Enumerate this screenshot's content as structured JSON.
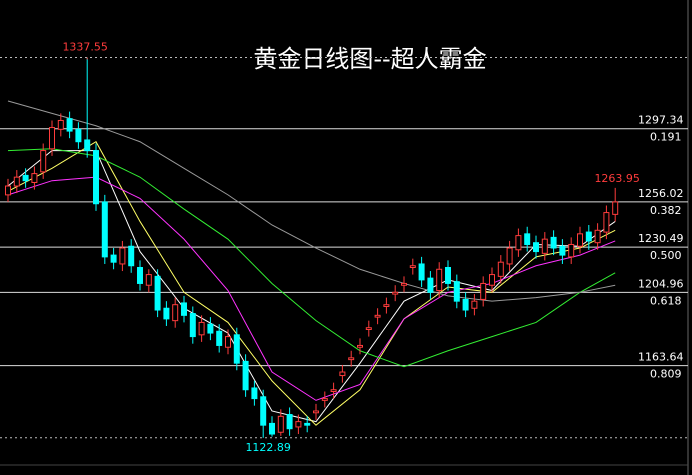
{
  "chart_data": {
    "type": "candlestick",
    "title": "黄金日线图--超人霸金",
    "up_color": "#ff3c3c",
    "down_color": "#00ffff",
    "ylim": [
      1103,
      1370
    ],
    "open": [
      1260,
      1265,
      1271,
      1267,
      1273,
      1286,
      1297,
      1303,
      1297,
      1291,
      1285,
      1256,
      1226,
      1221,
      1231,
      1219,
      1209,
      1214,
      1196,
      1189,
      1199,
      1193,
      1181,
      1187,
      1183,
      1174,
      1181,
      1166,
      1151,
      1146,
      1131,
      1126,
      1136,
      1129,
      1131,
      1137,
      1144,
      1149,
      1158,
      1167,
      1174,
      1184,
      1191,
      1197,
      1204,
      1209,
      1219,
      1221,
      1213,
      1206,
      1219,
      1211,
      1201,
      1196,
      1201,
      1209,
      1214,
      1221,
      1229,
      1238,
      1233,
      1227,
      1236,
      1231,
      1225,
      1231,
      1239,
      1233,
      1239,
      1249
    ],
    "high": [
      1269,
      1274,
      1275,
      1276,
      1289,
      1302,
      1306,
      1307,
      1301,
      1337.55,
      1289,
      1260,
      1230,
      1234,
      1235,
      1223,
      1218,
      1218,
      1200,
      1202,
      1203,
      1197,
      1192,
      1191,
      1187,
      1184,
      1185,
      1170,
      1155,
      1150,
      1135,
      1139,
      1140,
      1136,
      1135,
      1142,
      1149,
      1154,
      1164,
      1172,
      1179,
      1189,
      1196,
      1202,
      1209,
      1214,
      1224,
      1225,
      1217,
      1222,
      1223,
      1215,
      1205,
      1204,
      1214,
      1219,
      1226,
      1234,
      1241,
      1242,
      1237,
      1239,
      1240,
      1235,
      1236,
      1242,
      1243,
      1244,
      1254,
      1263.95
    ],
    "low": [
      1256,
      1261,
      1264,
      1263,
      1269,
      1282,
      1293,
      1292,
      1286,
      1281,
      1251,
      1221,
      1218,
      1217,
      1216,
      1206,
      1205,
      1191,
      1186,
      1185,
      1188,
      1176,
      1177,
      1178,
      1171,
      1170,
      1161,
      1146,
      1141,
      1122.89,
      1123.5,
      1124,
      1124,
      1125,
      1126,
      1133,
      1140,
      1145,
      1154,
      1163,
      1170,
      1180,
      1187,
      1193,
      1200,
      1205,
      1215,
      1208,
      1201,
      1202,
      1206,
      1196,
      1191,
      1192,
      1197,
      1205,
      1210,
      1217,
      1225,
      1228,
      1224,
      1223,
      1226,
      1221,
      1221,
      1227,
      1229,
      1229,
      1235,
      1245
    ],
    "close": [
      1265,
      1270,
      1268,
      1272,
      1285,
      1298,
      1302,
      1296,
      1290,
      1285,
      1255,
      1225,
      1222,
      1230,
      1220,
      1210,
      1215,
      1195,
      1190,
      1198,
      1192,
      1180,
      1188,
      1182,
      1175,
      1180,
      1165,
      1150,
      1145,
      1130,
      1125,
      1135,
      1128,
      1132,
      1130,
      1138,
      1145,
      1150,
      1160,
      1168,
      1175,
      1185,
      1192,
      1198,
      1205,
      1210,
      1220,
      1212,
      1205,
      1218,
      1210,
      1200,
      1195,
      1200,
      1210,
      1215,
      1222,
      1230,
      1237,
      1232,
      1228,
      1235,
      1230,
      1226,
      1232,
      1238,
      1234,
      1240,
      1250,
      1256
    ],
    "series": [
      {
        "color": "#ffffff",
        "x": [
          0,
          5,
          10,
          15,
          20,
          25,
          30,
          35,
          40,
          45,
          50,
          55,
          60,
          65,
          69
        ],
        "values": [
          1265,
          1285,
          1285,
          1228,
          1196,
          1182,
          1138,
          1132,
          1165,
          1200,
          1212,
          1206,
          1232,
          1231,
          1245
        ]
      },
      {
        "color": "#ffff66",
        "x": [
          0,
          5,
          10,
          15,
          20,
          25,
          30,
          35,
          40,
          45,
          50,
          55,
          60,
          65,
          69
        ],
        "values": [
          1262,
          1275,
          1290,
          1245,
          1205,
          1188,
          1155,
          1130,
          1150,
          1190,
          1208,
          1205,
          1225,
          1230,
          1240
        ]
      },
      {
        "color": "#ff33ff",
        "x": [
          0,
          5,
          10,
          15,
          20,
          25,
          30,
          35,
          40,
          45,
          50,
          55,
          60,
          65,
          69
        ],
        "values": [
          1260,
          1268,
          1270,
          1258,
          1235,
          1206,
          1160,
          1144,
          1153,
          1190,
          1205,
          1210,
          1220,
          1226,
          1234
        ]
      },
      {
        "color": "#33ee33",
        "x": [
          0,
          5,
          10,
          15,
          20,
          25,
          30,
          35,
          40,
          45,
          50,
          55,
          60,
          65,
          69
        ],
        "values": [
          1285,
          1286,
          1282,
          1270,
          1252,
          1235,
          1210,
          1189,
          1172,
          1163,
          1172,
          1180,
          1188,
          1205,
          1216
        ]
      },
      {
        "color": "#9a9a9a",
        "x": [
          0,
          5,
          10,
          15,
          20,
          25,
          30,
          35,
          40,
          45,
          50,
          55,
          60,
          65,
          69
        ],
        "values": [
          1313,
          1306,
          1299,
          1290,
          1275,
          1260,
          1243,
          1230,
          1218,
          1210,
          1203,
          1200,
          1202,
          1205,
          1209
        ]
      }
    ],
    "high_label": 1337.55,
    "low_label": 1122.89,
    "last_high_label": 1263.95,
    "levels": [
      {
        "price": 1297.34,
        "ratio": "0.191"
      },
      {
        "price": 1256.02,
        "ratio": "0.382"
      },
      {
        "price": 1230.49,
        "ratio": "0.500"
      },
      {
        "price": 1204.96,
        "ratio": "0.618"
      },
      {
        "price": 1163.64,
        "ratio": "0.809"
      }
    ]
  }
}
